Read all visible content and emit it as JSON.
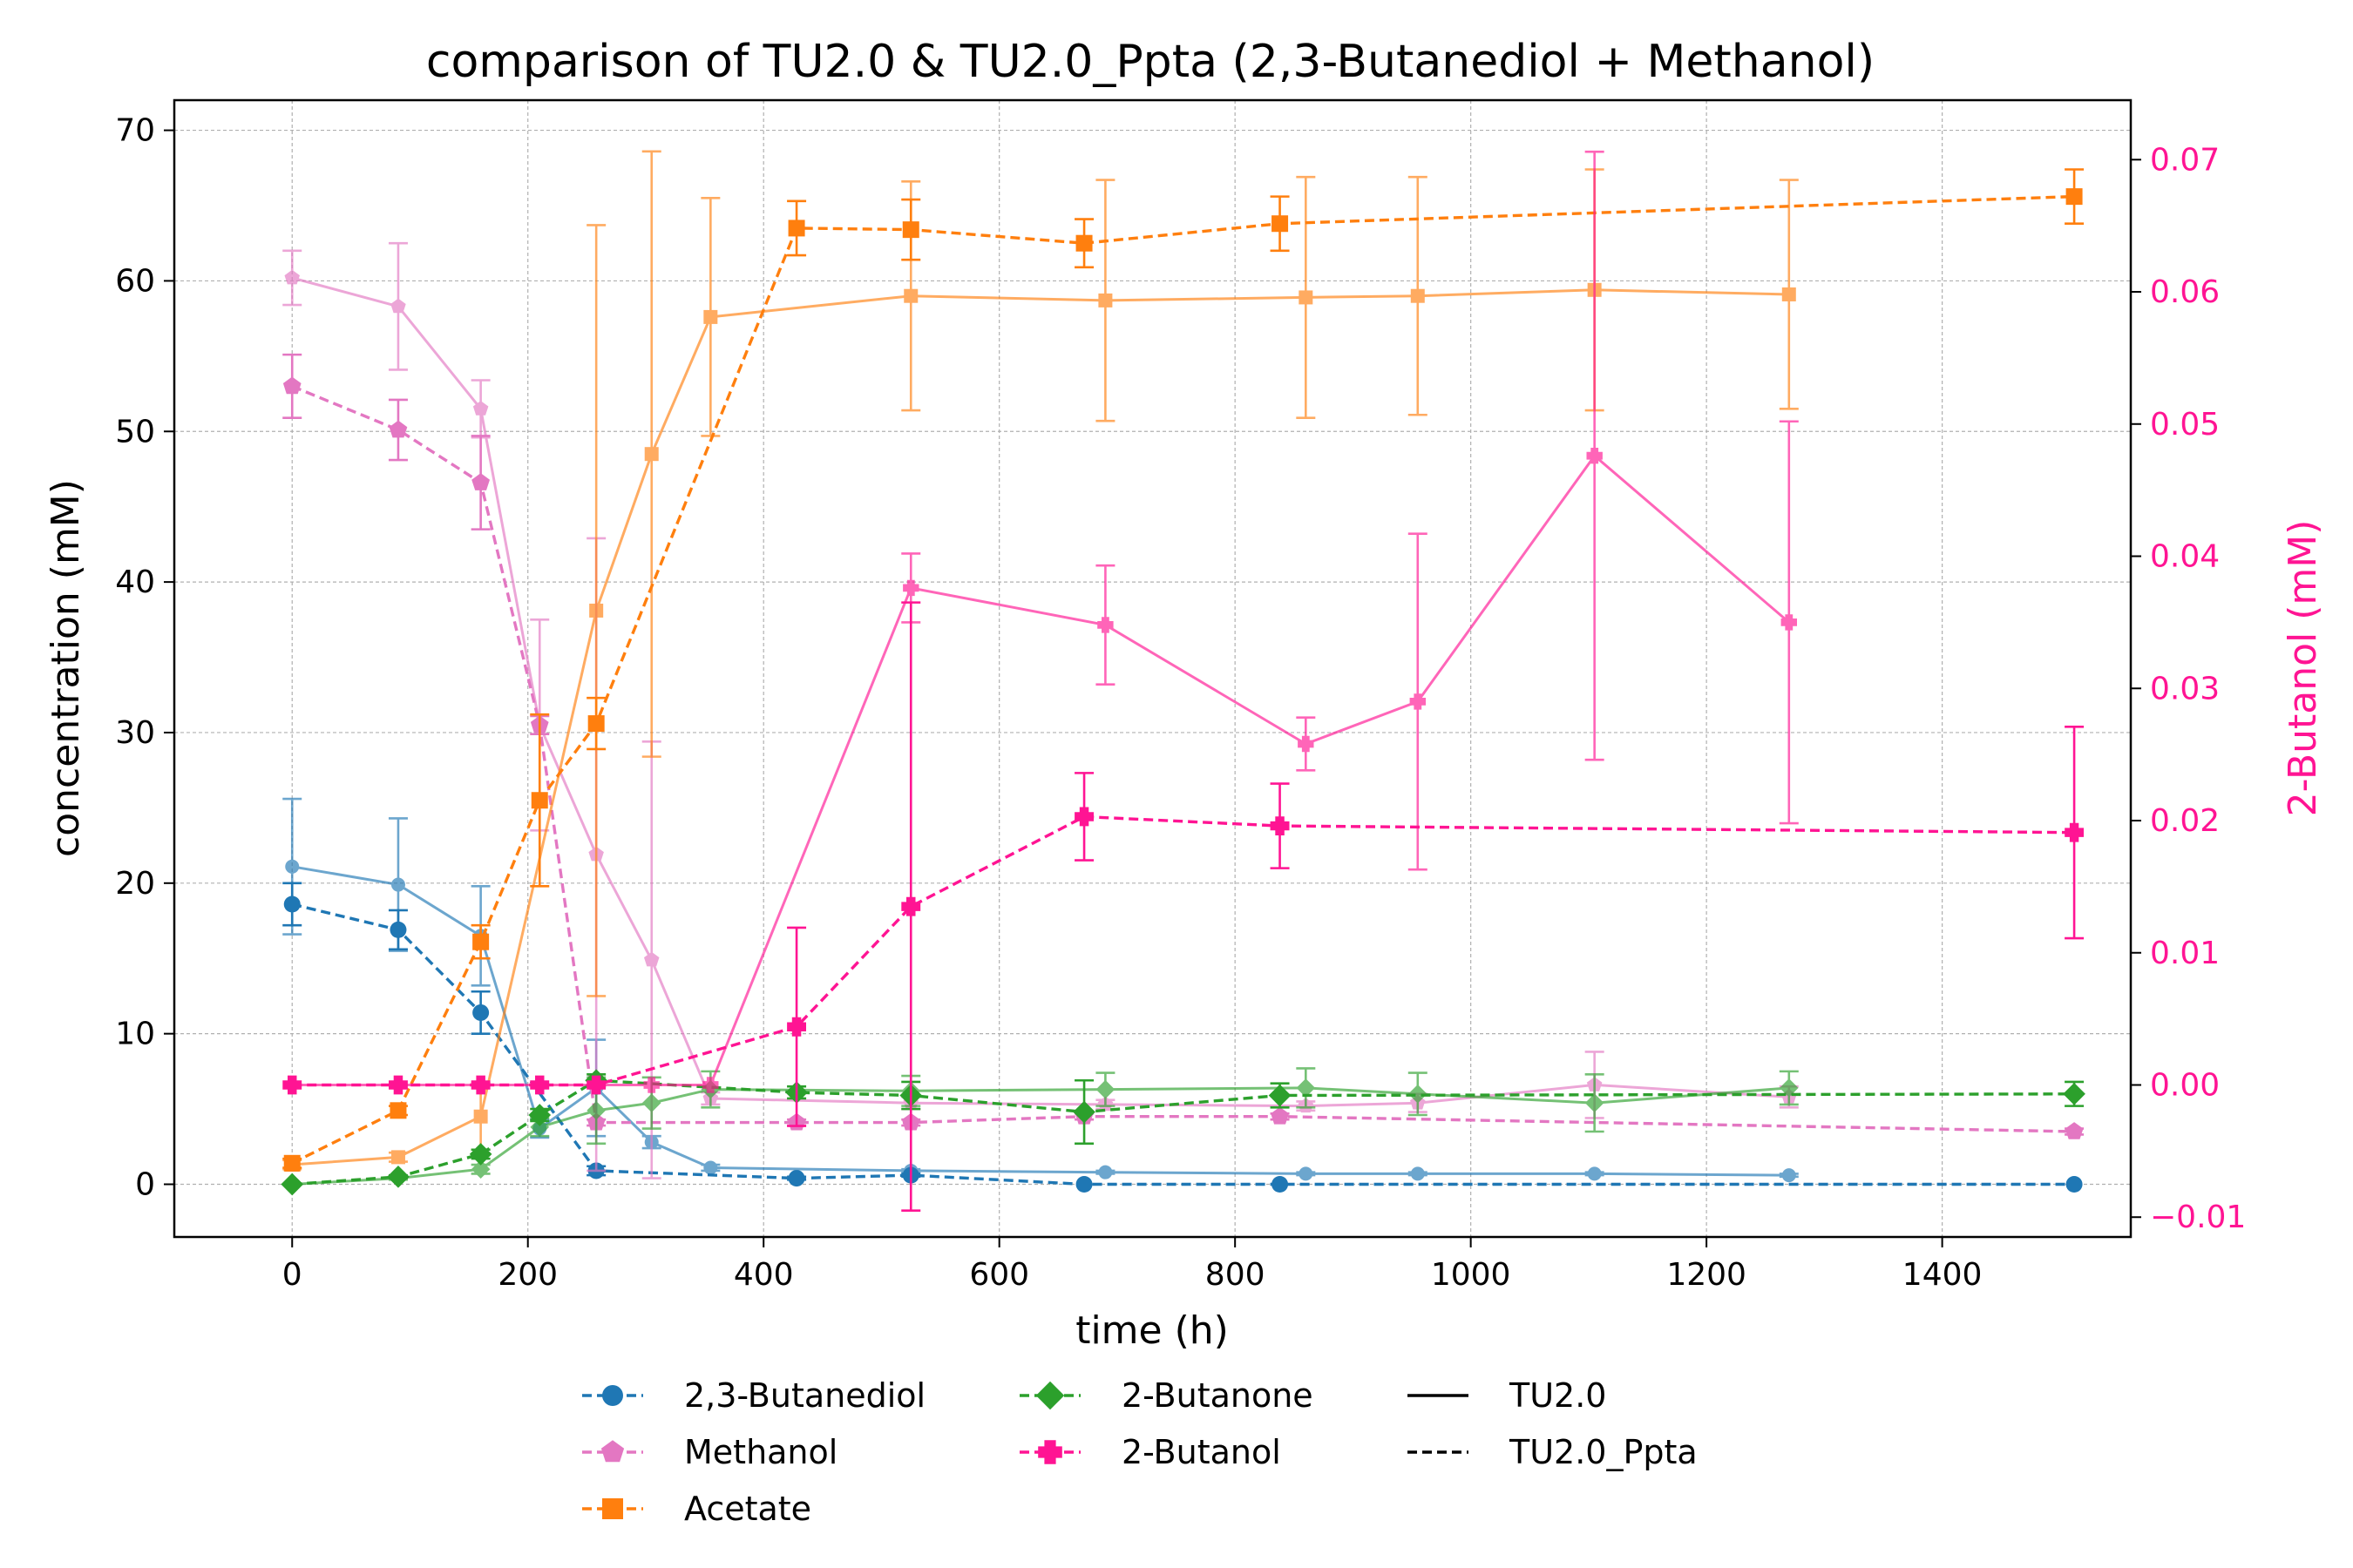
{
  "chart_data": {
    "type": "line",
    "title": "comparison of TU2.0 & TU2.0_Ppta (2,3-Butanediol + Methanol)",
    "xlabel": "time (h)",
    "ylabel": "concentration (mM)",
    "ylabel_right": "2-Butanol (mM)",
    "xlim": [
      -100,
      1560
    ],
    "ylim": [
      -3.5,
      72
    ],
    "ylim_right": [
      -0.0115,
      0.0745
    ],
    "xticks": [
      0,
      200,
      400,
      600,
      800,
      1000,
      1200,
      1400
    ],
    "xtick_labels": [
      "0",
      "200",
      "400",
      "600",
      "800",
      "1000",
      "1200",
      "1400"
    ],
    "yticks": [
      0,
      10,
      20,
      30,
      40,
      50,
      60,
      70
    ],
    "ytick_labels": [
      "0",
      "10",
      "20",
      "30",
      "40",
      "50",
      "60",
      "70"
    ],
    "yticks_right": [
      -0.01,
      0.0,
      0.01,
      0.02,
      0.03,
      0.04,
      0.05,
      0.06,
      0.07
    ],
    "ytick_labels_right": [
      "−0.01",
      "0.00",
      "0.01",
      "0.02",
      "0.03",
      "0.04",
      "0.05",
      "0.06",
      "0.07"
    ],
    "grid": true,
    "legend_position": "below",
    "legend": {
      "compounds": [
        {
          "name": "2,3-Butanediol",
          "color": "#1f77b4",
          "marker": "circle"
        },
        {
          "name": "Methanol",
          "color": "#e377c2",
          "marker": "pentagon"
        },
        {
          "name": "Acetate",
          "color": "#ff7f0e",
          "marker": "square"
        },
        {
          "name": "2-Butanone",
          "color": "#2ca02c",
          "marker": "diamond"
        },
        {
          "name": "2-Butanol",
          "color": "#ff1493",
          "marker": "plus"
        }
      ],
      "strains": [
        {
          "name": "TU2.0",
          "style": "solid"
        },
        {
          "name": "TU2.0_Ppta",
          "style": "dashed"
        }
      ]
    },
    "series": [
      {
        "name": "2,3-Butanediol",
        "strain": "TU2.0",
        "style": "solid",
        "color": "#1f77b4",
        "marker": "circle",
        "axis": "left",
        "x": [
          0,
          90,
          160,
          210,
          258,
          305,
          355,
          525,
          690,
          860,
          955,
          1105,
          1270
        ],
        "y": [
          21.1,
          19.9,
          16.5,
          3.7,
          6.4,
          2.8,
          1.1,
          0.9,
          0.8,
          0.7,
          0.7,
          0.7,
          0.6
        ],
        "err": [
          4.5,
          4.4,
          3.3,
          0.6,
          3.2,
          0.4,
          0.2,
          0.1,
          0.1,
          0.1,
          0.1,
          0.1,
          0.1
        ]
      },
      {
        "name": "2,3-Butanediol",
        "strain": "TU2.0_Ppta",
        "style": "dashed",
        "color": "#1f77b4",
        "marker": "circle",
        "axis": "left",
        "x": [
          0,
          90,
          160,
          258,
          428,
          525,
          672,
          838,
          1512
        ],
        "y": [
          18.6,
          16.9,
          11.4,
          0.9,
          0.4,
          0.6,
          0.0,
          0.0,
          0.0
        ],
        "err": [
          1.4,
          1.3,
          1.4,
          0.3,
          0.1,
          0.1,
          0.0,
          0.0,
          0.0
        ]
      },
      {
        "name": "Methanol",
        "strain": "TU2.0",
        "style": "solid",
        "color": "#e377c2",
        "marker": "pentagon",
        "axis": "left",
        "x": [
          0,
          90,
          160,
          210,
          258,
          305,
          355,
          525,
          690,
          860,
          955,
          1105,
          1270
        ],
        "y": [
          60.2,
          58.3,
          51.5,
          30.5,
          21.9,
          14.9,
          5.7,
          5.4,
          5.3,
          5.2,
          5.4,
          6.6,
          5.8
        ],
        "err": [
          1.8,
          4.2,
          1.9,
          7.0,
          21.0,
          14.5,
          0.4,
          0.4,
          0.3,
          0.3,
          0.6,
          2.2,
          0.7
        ]
      },
      {
        "name": "Methanol",
        "strain": "TU2.0_Ppta",
        "style": "dashed",
        "color": "#e377c2",
        "marker": "pentagon",
        "axis": "left",
        "x": [
          0,
          90,
          160,
          210,
          258,
          428,
          525,
          672,
          838,
          1512
        ],
        "y": [
          53.0,
          50.1,
          46.6,
          30.5,
          4.1,
          4.1,
          4.1,
          4.5,
          4.5,
          3.5
        ],
        "err": [
          2.1,
          2.0,
          3.1,
          0.6,
          0.2,
          0.2,
          0.2,
          0.2,
          0.2,
          0.2
        ]
      },
      {
        "name": "Acetate",
        "strain": "TU2.0",
        "style": "solid",
        "color": "#ff7f0e",
        "marker": "square",
        "axis": "left",
        "x": [
          0,
          90,
          160,
          258,
          305,
          355,
          525,
          690,
          860,
          955,
          1105,
          1270
        ],
        "y": [
          1.3,
          1.8,
          4.5,
          38.1,
          48.5,
          57.6,
          59.0,
          58.7,
          58.9,
          59.0,
          59.4,
          59.1
        ],
        "err": [
          0.3,
          0.3,
          2.2,
          25.6,
          20.1,
          7.9,
          7.6,
          8.0,
          8.0,
          7.9,
          8.0,
          7.6
        ]
      },
      {
        "name": "Acetate",
        "strain": "TU2.0_Ppta",
        "style": "dashed",
        "color": "#ff7f0e",
        "marker": "square",
        "axis": "left",
        "x": [
          0,
          90,
          160,
          210,
          258,
          428,
          525,
          672,
          838,
          1512
        ],
        "y": [
          1.4,
          4.9,
          16.1,
          25.5,
          30.6,
          63.5,
          63.4,
          62.5,
          63.8,
          65.6
        ],
        "err": [
          0.3,
          0.3,
          1.1,
          5.7,
          1.7,
          1.8,
          2.0,
          1.6,
          1.8,
          1.8
        ]
      },
      {
        "name": "2-Butanone",
        "strain": "TU2.0",
        "style": "solid",
        "color": "#2ca02c",
        "marker": "diamond",
        "axis": "left",
        "x": [
          0,
          90,
          160,
          210,
          258,
          305,
          355,
          525,
          690,
          860,
          955,
          1105,
          1270
        ],
        "y": [
          0.0,
          0.4,
          1.0,
          3.8,
          4.9,
          5.4,
          6.3,
          6.2,
          6.3,
          6.4,
          6.0,
          5.4,
          6.4
        ],
        "err": [
          0.0,
          0.1,
          0.3,
          0.6,
          2.2,
          1.7,
          1.2,
          1.0,
          1.1,
          1.3,
          1.4,
          1.9,
          1.1
        ]
      },
      {
        "name": "2-Butanone",
        "strain": "TU2.0_Ppta",
        "style": "dashed",
        "color": "#2ca02c",
        "marker": "diamond",
        "axis": "left",
        "x": [
          0,
          90,
          160,
          210,
          258,
          428,
          525,
          672,
          838,
          1512
        ],
        "y": [
          0.0,
          0.5,
          2.0,
          4.6,
          6.9,
          6.1,
          5.9,
          4.8,
          5.9,
          6.0
        ],
        "err": [
          0.0,
          0.1,
          0.3,
          0.4,
          0.4,
          0.4,
          0.9,
          2.1,
          0.8,
          0.8
        ]
      },
      {
        "name": "2-Butanol",
        "strain": "TU2.0",
        "style": "solid",
        "color": "#ff1493",
        "marker": "plus",
        "axis": "right",
        "x": [
          0,
          90,
          160,
          210,
          258,
          305,
          355,
          525,
          690,
          860,
          955,
          1105,
          1270
        ],
        "y": [
          0.0,
          0.0,
          0.0,
          0.0,
          0.0,
          0.0,
          0.0,
          0.0376,
          0.0348,
          0.0258,
          0.029,
          0.0476,
          0.035
        ],
        "err": [
          0.0,
          0.0,
          0.0,
          0.0,
          0.0,
          0.0,
          0.0,
          0.0026,
          0.0045,
          0.002,
          0.0127,
          0.023,
          0.0152
        ]
      },
      {
        "name": "2-Butanol",
        "strain": "TU2.0_Ppta",
        "style": "dashed",
        "color": "#ff1493",
        "marker": "plus",
        "axis": "right",
        "x": [
          0,
          90,
          160,
          210,
          258,
          428,
          525,
          672,
          838,
          1512
        ],
        "y": [
          0.0,
          0.0,
          0.0,
          0.0,
          0.0,
          0.0044,
          0.0135,
          0.0203,
          0.0196,
          0.0191
        ],
        "err": [
          0.0,
          0.0,
          0.0,
          0.0,
          0.0,
          0.0075,
          0.023,
          0.0033,
          0.0032,
          0.008
        ]
      }
    ]
  }
}
